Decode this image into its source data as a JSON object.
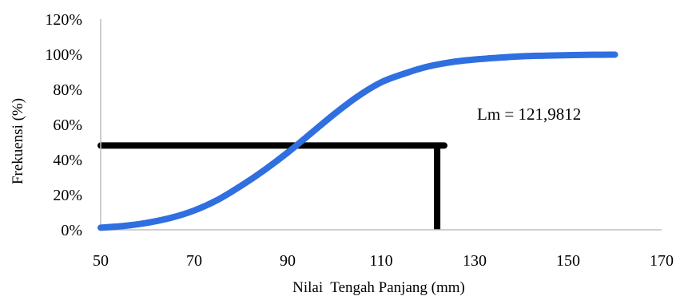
{
  "chart_data": {
    "type": "line",
    "title": "",
    "xlabel": "Nilai  Tengah Panjang (mm)",
    "ylabel": "Frekuensi (%)",
    "xlim": [
      50,
      170
    ],
    "ylim": [
      0,
      1.2
    ],
    "x_ticks": [
      50,
      70,
      90,
      110,
      130,
      150,
      170
    ],
    "x_tick_labels": [
      "50",
      "70",
      "90",
      "110",
      "130",
      "150",
      "170"
    ],
    "y_ticks": [
      0,
      0.2,
      0.4,
      0.6,
      0.8,
      1.0,
      1.2
    ],
    "y_tick_labels": [
      "0%",
      "20%",
      "40%",
      "60%",
      "80%",
      "100%",
      "120%"
    ],
    "grid": false,
    "legend": "none",
    "series": [
      {
        "color": "#2f6fe0",
        "x": [
          50,
          55,
          60,
          65,
          70,
          75,
          80,
          85,
          90,
          95,
          100,
          105,
          110,
          115,
          120,
          125,
          130,
          135,
          140,
          145,
          150,
          155,
          160
        ],
        "y": [
          0.012,
          0.022,
          0.04,
          0.068,
          0.11,
          0.17,
          0.25,
          0.34,
          0.44,
          0.55,
          0.66,
          0.76,
          0.84,
          0.89,
          0.93,
          0.955,
          0.97,
          0.98,
          0.988,
          0.992,
          0.995,
          0.997,
          0.998
        ]
      }
    ],
    "reference_lines": {
      "color": "#000000",
      "horizontal": {
        "y": 0.48,
        "x_from": 50,
        "x_to": 123.5
      },
      "vertical": {
        "x": 121.9812,
        "y_from": 0,
        "y_to": 0.48
      }
    },
    "annotation": {
      "text": "Lm = 121,9812"
    }
  }
}
